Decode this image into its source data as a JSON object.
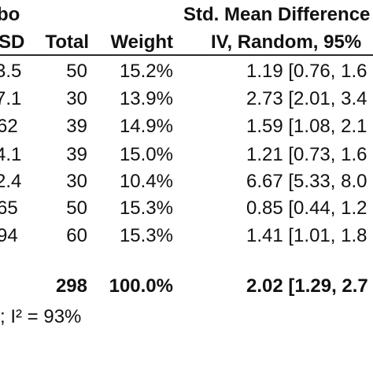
{
  "header": {
    "group_label_fragment": "bo",
    "smd_title": "Std. Mean Difference",
    "sd_col": "SD",
    "total_col": "Total",
    "weight_col": "Weight",
    "method_col": "IV, Random, 95%"
  },
  "rows": [
    {
      "sd": "3.5",
      "total": "50",
      "weight": "15.2%",
      "smd": "1.19 [0.76, 1.6"
    },
    {
      "sd": "7.1",
      "total": "30",
      "weight": "13.9%",
      "smd": "2.73 [2.01, 3.4"
    },
    {
      "sd": "62",
      "total": "39",
      "weight": "14.9%",
      "smd": "1.59 [1.08, 2.1"
    },
    {
      "sd": "4.1",
      "total": "39",
      "weight": "15.0%",
      "smd": "1.21 [0.73, 1.6"
    },
    {
      "sd": "2.4",
      "total": "30",
      "weight": "10.4%",
      "smd": "6.67 [5.33, 8.0"
    },
    {
      "sd": "65",
      "total": "50",
      "weight": "15.3%",
      "smd": "0.85 [0.44, 1.2"
    },
    {
      "sd": "94",
      "total": "60",
      "weight": "15.3%",
      "smd": "1.41 [1.01, 1.8"
    }
  ],
  "summary": {
    "total": "298",
    "weight": "100.0%",
    "smd": "2.02 [1.29, 2.7"
  },
  "heterogeneity": "); I² = 93%"
}
